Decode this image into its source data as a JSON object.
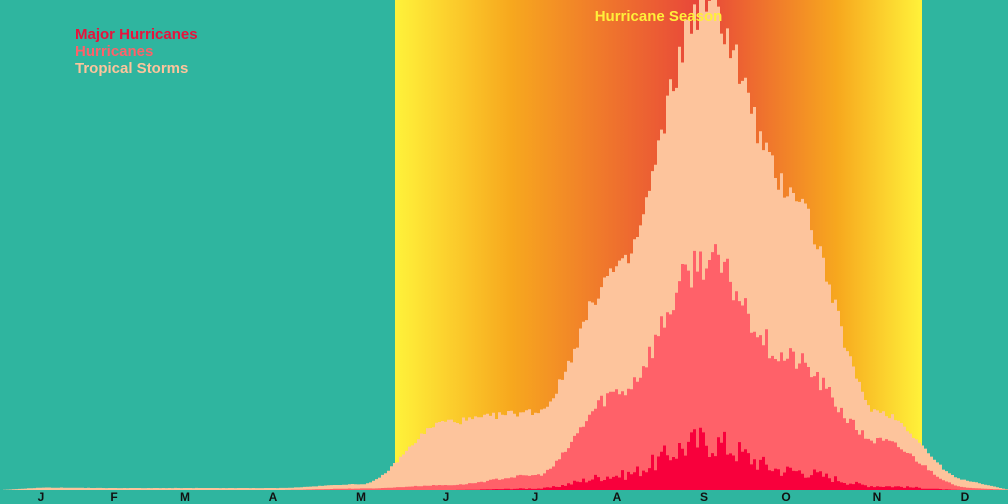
{
  "colors": {
    "background": "#2fb59f",
    "season_edge": "#fff23a",
    "season_mid": "#f7a81e",
    "season_center": "#e8453a",
    "tropical": "#fdc49c",
    "hurricane": "#ff6169",
    "major": "#f8003c",
    "season_title": "#ffef3a",
    "legend_major": "#e8133c",
    "legend_hurricane": "#ff6169",
    "legend_tropical": "#fdc49c"
  },
  "chart_data": {
    "type": "area",
    "title": "Hurricane Season",
    "x": [
      "J",
      "F",
      "M",
      "A",
      "M",
      "J",
      "J",
      "A",
      "S",
      "O",
      "N",
      "D"
    ],
    "season_range": [
      "J",
      "N"
    ],
    "legend_position": "top-left",
    "series": [
      {
        "name": "Major Hurricanes",
        "values": [
          0,
          0,
          0,
          0,
          0,
          0,
          0.3,
          3,
          10,
          4,
          0.8,
          0
        ]
      },
      {
        "name": "Hurricanes",
        "values": [
          0,
          0,
          0,
          0,
          0.3,
          1,
          3,
          20,
          47,
          27,
          10,
          0.5
        ]
      },
      {
        "name": "Tropical Storms",
        "values": [
          0.5,
          0.4,
          0.4,
          0.4,
          1.2,
          14,
          16,
          45,
          100,
          62,
          16,
          2
        ]
      }
    ]
  }
}
